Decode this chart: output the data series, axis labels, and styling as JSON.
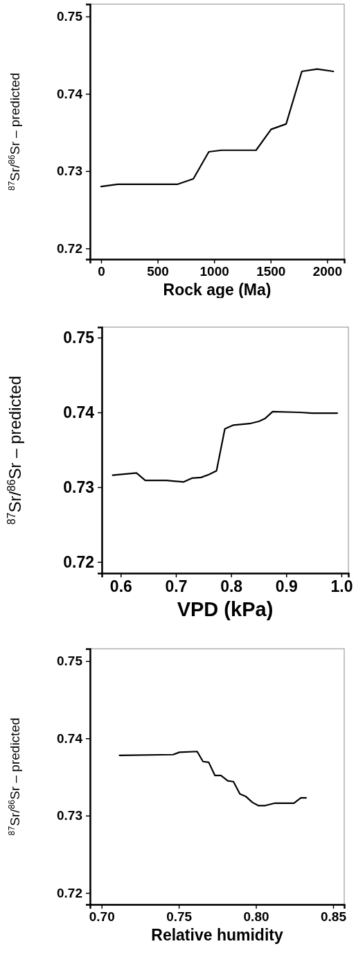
{
  "chart_data": [
    {
      "type": "line",
      "xlabel": "Rock age (Ma)",
      "ylabel": "$^{87}$Sr/$^{86}$Sr – predicted",
      "xlim": [
        -98,
        2151
      ],
      "ylim": [
        0.7186,
        0.7516
      ],
      "xticks": [
        0,
        500,
        1000,
        1500,
        2000
      ],
      "yticks": [
        {
          "value": 0.72,
          "label": "0.72"
        },
        {
          "value": 0.73,
          "label": "0.73"
        },
        {
          "value": 0.74,
          "label": "0.74"
        },
        {
          "value": 0.75,
          "label": "0.75"
        }
      ],
      "x": [
        0,
        147,
        678,
        816,
        953,
        1065,
        1371,
        1504,
        1637,
        1776,
        1912,
        2055
      ],
      "series": [
        {
          "color": "#000000",
          "values": [
            0.728,
            0.7283,
            0.7283,
            0.729,
            0.7325,
            0.7327,
            0.7327,
            0.7354,
            0.7361,
            0.7429,
            0.7432,
            0.7429
          ]
        }
      ]
    },
    {
      "type": "line",
      "xlabel": "VPD (kPa)",
      "ylabel": "$^{87}$Sr/$^{86}$Sr – predicted",
      "xlim": [
        0.5657,
        1.0126
      ],
      "ylim": [
        0.7185,
        0.7514
      ],
      "xticks": [
        0.6,
        0.7,
        0.8,
        0.9,
        {
          "value": 1.0,
          "label": "1.0"
        }
      ],
      "yticks": [
        {
          "value": 0.72,
          "label": "0.72"
        },
        {
          "value": 0.73,
          "label": "0.73"
        },
        {
          "value": 0.74,
          "label": "0.74"
        },
        {
          "value": 0.75,
          "label": "0.75"
        }
      ],
      "x": [
        0.5854,
        0.6285,
        0.6444,
        0.6577,
        0.6828,
        0.7142,
        0.7289,
        0.7456,
        0.7603,
        0.7736,
        0.7887,
        0.8042,
        0.8335,
        0.8502,
        0.8619,
        0.8753,
        0.9255,
        0.9464,
        0.9925
      ],
      "series": [
        {
          "color": "#000000",
          "values": [
            0.7316,
            0.7319,
            0.7309,
            0.7309,
            0.7309,
            0.7307,
            0.7312,
            0.7313,
            0.7317,
            0.7322,
            0.7378,
            0.7383,
            0.7385,
            0.7388,
            0.7392,
            0.7401,
            0.74,
            0.7399,
            0.7399
          ]
        }
      ]
    },
    {
      "type": "line",
      "xlabel": "Relative humidity",
      "ylabel": "$^{87}$Sr/$^{86}$Sr – predicted",
      "xlim": [
        0.6925,
        0.8572
      ],
      "ylim": [
        0.7185,
        0.7516
      ],
      "xticks": [
        {
          "value": 0.7,
          "label": "0.70"
        },
        0.75,
        {
          "value": 0.8,
          "label": "0.80"
        },
        0.85
      ],
      "yticks": [
        {
          "value": 0.72,
          "label": "0.72"
        },
        {
          "value": 0.73,
          "label": "0.73"
        },
        {
          "value": 0.74,
          "label": "0.74"
        },
        {
          "value": 0.75,
          "label": "0.75"
        }
      ],
      "x": [
        0.7116,
        0.7463,
        0.7504,
        0.7619,
        0.7657,
        0.7694,
        0.7734,
        0.7773,
        0.7818,
        0.7854,
        0.7896,
        0.7933,
        0.7978,
        0.8015,
        0.806,
        0.8119,
        0.8246,
        0.8291,
        0.8325
      ],
      "series": [
        {
          "color": "#000000",
          "values": [
            0.7378,
            0.7379,
            0.7382,
            0.7383,
            0.737,
            0.7369,
            0.7352,
            0.7352,
            0.7345,
            0.7344,
            0.7328,
            0.7325,
            0.7317,
            0.7313,
            0.7313,
            0.7316,
            0.7316,
            0.7323,
            0.7323
          ]
        }
      ]
    }
  ]
}
